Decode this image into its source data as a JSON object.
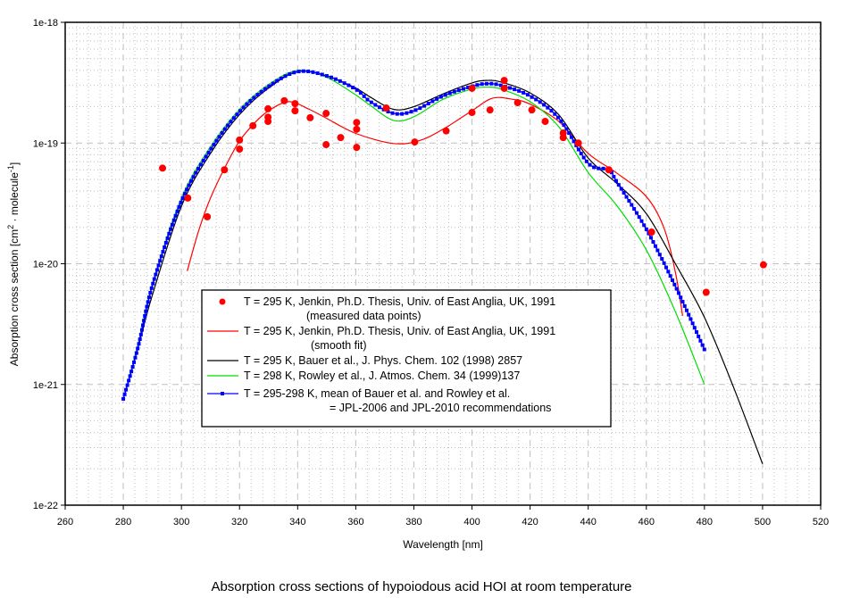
{
  "chart_data": {
    "type": "line",
    "title": "Absorption cross sections of hypoiodous acid HOI at room temperature",
    "xlabel": "Wavelength [nm]",
    "ylabel": "Absorption cross section [cm2 · molecule-1]",
    "ylabel_parts": {
      "pre": "Absorption cross section [cm",
      "sup1": "2",
      "mid": " · molecule",
      "sup2": "-1",
      "post": "]"
    },
    "xlim": [
      260,
      520
    ],
    "ylim": [
      1e-22,
      1e-18
    ],
    "yscale": "log",
    "x_ticks": [
      260,
      280,
      300,
      320,
      340,
      360,
      380,
      400,
      420,
      440,
      460,
      480,
      500,
      520
    ],
    "x_tick_labels": [
      "260",
      "280",
      "300",
      "320",
      "340",
      "360",
      "380",
      "400",
      "420",
      "440",
      "460",
      "480",
      "500",
      "520"
    ],
    "y_ticks": [
      1e-18,
      1e-19,
      1e-20,
      1e-21,
      1e-22
    ],
    "y_tick_labels": [
      "1e-18",
      "1e-19",
      "1e-20",
      "1e-21",
      "1e-22"
    ],
    "grid": true,
    "legend_position": "lower-center",
    "series": [
      {
        "name": "T = 295 K, Jenkin, Ph.D. Thesis, Univ. of East Anglia, UK, 1991 (measured data points)",
        "legend_lines": [
          "T = 295 K, Jenkin, Ph.D. Thesis, Univ. of East Anglia, UK, 1991",
          "(measured data points)"
        ],
        "kind": "scatter",
        "color": "#ff0000",
        "x": [
          293.5,
          302.2,
          308.9,
          314.8,
          320,
          320,
          324.6,
          329.8,
          329.8,
          329.8,
          335.4,
          339.1,
          339.1,
          344.3,
          349.8,
          349.8,
          354.8,
          360.3,
          360.3,
          360.3,
          370.5,
          380.3,
          391.1,
          400,
          400,
          406.2,
          411.1,
          411.1,
          415.7,
          420.6,
          425.2,
          431.4,
          431.4,
          436.6,
          447.1,
          461.8,
          480.6,
          500.3
        ],
        "y": [
          6.2e-20,
          3.5e-20,
          2.45e-20,
          6e-20,
          1.06e-19,
          8.9e-20,
          1.39e-19,
          1.92e-19,
          1.64e-19,
          1.51e-19,
          2.24e-19,
          2.12e-19,
          1.85e-19,
          1.62e-19,
          1.76e-19,
          9.7e-20,
          1.11e-19,
          1.48e-19,
          1.3e-19,
          9.2e-20,
          1.95e-19,
          1.02e-19,
          1.26e-19,
          2.84e-19,
          1.79e-19,
          1.88e-19,
          3.3e-19,
          2.84e-19,
          2.16e-19,
          1.88e-19,
          1.51e-19,
          1.21e-19,
          1.11e-19,
          1e-19,
          6e-20,
          1.83e-20,
          5.8e-21,
          9.8e-21
        ]
      },
      {
        "name": "T = 295 K, Jenkin, Ph.D. Thesis, Univ. of East Anglia, UK, 1991 (smooth fit)",
        "legend_lines": [
          "T = 295 K, Jenkin, Ph.D. Thesis, Univ. of East Anglia, UK, 1991",
          "(smooth fit)"
        ],
        "kind": "line",
        "color": "#ff0000",
        "x": [
          302,
          306,
          310,
          315,
          320,
          325,
          330,
          337,
          344,
          350,
          360,
          373,
          382,
          390,
          400,
          407,
          414,
          420,
          430,
          440,
          450,
          460,
          466,
          470,
          472.5
        ],
        "y": [
          8.7e-21,
          1.9e-20,
          3.5e-20,
          6.3e-20,
          1.04e-19,
          1.45e-19,
          1.85e-19,
          2.2e-19,
          1.9e-19,
          1.6e-19,
          1.2e-19,
          9.9e-20,
          1.05e-19,
          1.3e-19,
          1.85e-19,
          2.35e-19,
          2.3e-19,
          2.1e-19,
          1.5e-19,
          8.2e-20,
          5.6e-20,
          3.6e-20,
          2e-20,
          8.5e-21,
          3.7e-21
        ]
      },
      {
        "name": "T = 295 K, Bauer et al., J. Phys. Chem. 102 (1998) 2857",
        "legend_lines": [
          "T = 295 K, Bauer et al., J. Phys. Chem. 102 (1998) 2857"
        ],
        "kind": "line",
        "color": "#000000",
        "x": [
          280,
          285,
          290,
          300,
          310,
          320,
          330,
          340,
          350,
          360,
          365,
          373,
          380,
          390,
          400,
          405,
          410,
          420,
          430,
          440,
          450,
          460,
          470,
          480,
          490,
          500
        ],
        "y": [
          7.6e-22,
          2e-21,
          5.5e-21,
          3e-20,
          8.2e-20,
          1.72e-19,
          2.85e-19,
          3.9e-19,
          3.6e-19,
          2.85e-19,
          2.4e-19,
          1.9e-19,
          2e-19,
          2.55e-19,
          3.15e-19,
          3.3e-19,
          3.2e-19,
          2.6e-19,
          1.7e-19,
          7.5e-20,
          4.6e-20,
          2.6e-20,
          1e-20,
          3.6e-21,
          9.5e-22,
          2.2e-22
        ]
      },
      {
        "name": "T = 298 K, Rowley et al., J. Atmos. Chem. 34 (1999)137",
        "legend_lines": [
          "T = 298 K, Rowley et al., J. Atmos. Chem. 34 (1999)137"
        ],
        "kind": "line",
        "color": "#00dd00",
        "x": [
          280,
          285,
          290,
          300,
          310,
          320,
          330,
          340,
          350,
          360,
          365,
          373,
          380,
          390,
          400,
          405,
          410,
          420,
          430,
          440,
          450,
          460,
          470,
          480
        ],
        "y": [
          7.6e-22,
          2.1e-21,
          6.8e-21,
          3.5e-20,
          9.3e-20,
          1.9e-19,
          3.05e-19,
          4e-19,
          3.5e-19,
          2.5e-19,
          2.05e-19,
          1.54e-19,
          1.65e-19,
          2.3e-19,
          2.8e-19,
          2.9e-19,
          2.8e-19,
          2.2e-19,
          1.35e-19,
          5.7e-20,
          3e-20,
          1.3e-20,
          4e-21,
          1e-21
        ]
      },
      {
        "name": "T = 295-298 K, mean of Bauer et al. and Rowley et al. = JPL-2006 and JPL-2010 recommendations",
        "legend_lines": [
          "T = 295-298 K, mean of Bauer et al. and Rowley et al.",
          "= JPL-2006 and JPL-2010 recommendations"
        ],
        "kind": "line-marker",
        "color": "#0000ff",
        "x": [
          280,
          285,
          290,
          300,
          310,
          320,
          330,
          340,
          350,
          360,
          365,
          373,
          380,
          390,
          400,
          405,
          410,
          420,
          430,
          440,
          447,
          450,
          460,
          470,
          480
        ],
        "y": [
          7.6e-22,
          2e-21,
          6.6e-21,
          3.3e-20,
          8.8e-20,
          1.82e-19,
          2.94e-19,
          3.9e-19,
          3.6e-19,
          2.79e-19,
          2.2e-19,
          1.76e-19,
          1.85e-19,
          2.45e-19,
          2.95e-19,
          3.1e-19,
          3e-19,
          2.45e-19,
          1.59e-19,
          6.8e-20,
          6e-20,
          4.7e-20,
          1.93e-20,
          6.5e-21,
          1.95e-21
        ]
      }
    ]
  }
}
